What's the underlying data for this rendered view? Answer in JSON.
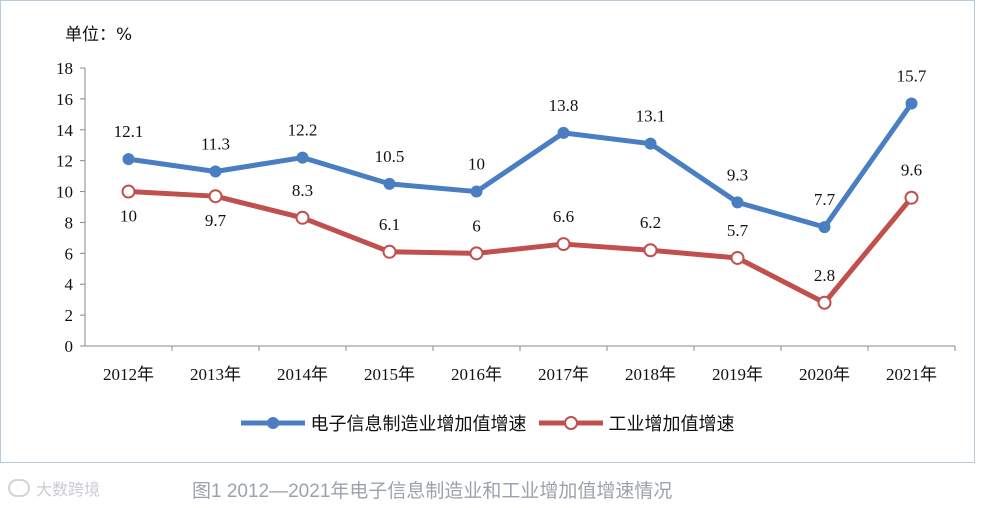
{
  "unit_label": "单位：%",
  "caption": "图1  2012—2021年电子信息制造业和工业增加值增速情况",
  "watermark": "大数跨境",
  "legend": [
    {
      "label": "电子信息制造业增加值增速",
      "color": "#4a7ec2",
      "marker": "filled"
    },
    {
      "label": "工业增加值增速",
      "color": "#c0504d",
      "marker": "hollow"
    }
  ],
  "chart_data": {
    "type": "line",
    "categories": [
      "2012年",
      "2013年",
      "2014年",
      "2015年",
      "2016年",
      "2017年",
      "2018年",
      "2019年",
      "2020年",
      "2021年"
    ],
    "series": [
      {
        "name": "电子信息制造业增加值增速",
        "values": [
          12.1,
          11.3,
          12.2,
          10.5,
          10,
          13.8,
          13.1,
          9.3,
          7.7,
          15.7
        ],
        "labels": [
          "12.1",
          "11.3",
          "12.2",
          "10.5",
          "10",
          "13.8",
          "13.1",
          "9.3",
          "7.7",
          "15.7"
        ]
      },
      {
        "name": "工业增加值增速",
        "values": [
          10,
          9.7,
          8.3,
          6.1,
          6,
          6.6,
          6.2,
          5.7,
          2.8,
          9.6
        ],
        "labels": [
          "10",
          "9.7",
          "8.3",
          "6.1",
          "6",
          "6.6",
          "6.2",
          "5.7",
          "2.8",
          "9.6"
        ]
      }
    ],
    "ylim": [
      0,
      18
    ],
    "yticks": [
      "0",
      "2",
      "4",
      "6",
      "8",
      "10",
      "12",
      "14",
      "16",
      "18"
    ],
    "grid": false,
    "legend_position": "bottom"
  }
}
